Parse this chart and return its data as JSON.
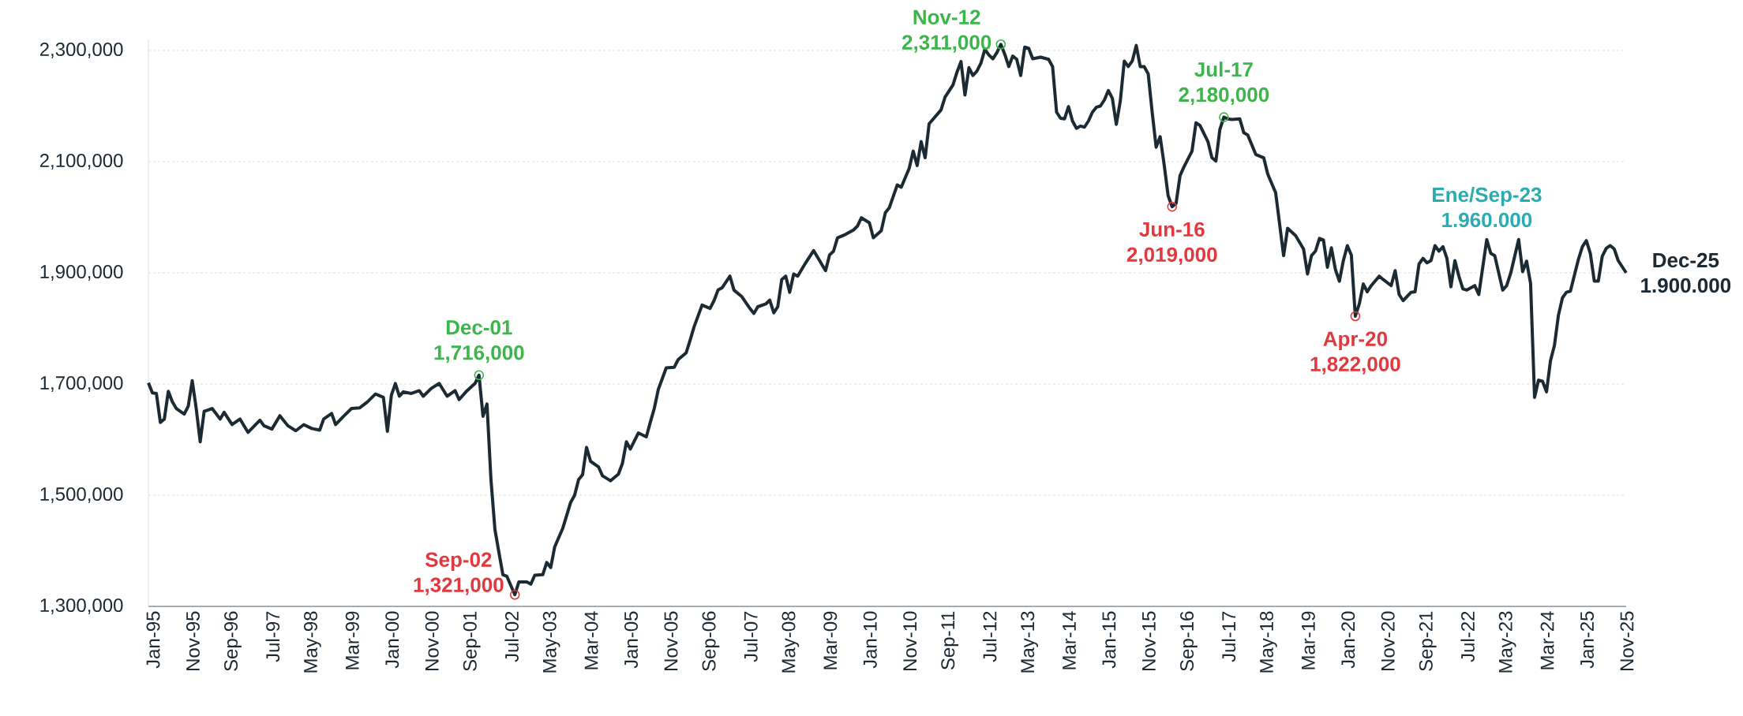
{
  "chart_data": {
    "type": "line",
    "xlim": [
      "1995-01",
      "2025-12"
    ],
    "ylim": [
      1300000,
      2320000
    ],
    "grid": "y",
    "xticks": [
      {
        "value": "1995-01",
        "label": "Jan-95"
      },
      {
        "value": "1995-11",
        "label": "Nov-95"
      },
      {
        "value": "1996-09",
        "label": "Sep-96"
      },
      {
        "value": "1997-07",
        "label": "Jul-97"
      },
      {
        "value": "1998-05",
        "label": "May-98"
      },
      {
        "value": "1999-03",
        "label": "Mar-99"
      },
      {
        "value": "2000-01",
        "label": "Jan-00"
      },
      {
        "value": "2000-11",
        "label": "Nov-00"
      },
      {
        "value": "2001-09",
        "label": "Sep-01"
      },
      {
        "value": "2002-07",
        "label": "Jul-02"
      },
      {
        "value": "2003-05",
        "label": "May-03"
      },
      {
        "value": "2004-03",
        "label": "Mar-04"
      },
      {
        "value": "2005-01",
        "label": "Jan-05"
      },
      {
        "value": "2005-11",
        "label": "Nov-05"
      },
      {
        "value": "2006-09",
        "label": "Sep-06"
      },
      {
        "value": "2007-07",
        "label": "Jul-07"
      },
      {
        "value": "2008-05",
        "label": "May-08"
      },
      {
        "value": "2009-03",
        "label": "Mar-09"
      },
      {
        "value": "2010-01",
        "label": "Jan-10"
      },
      {
        "value": "2010-11",
        "label": "Nov-10"
      },
      {
        "value": "2011-09",
        "label": "Sep-11"
      },
      {
        "value": "2012-07",
        "label": "Jul-12"
      },
      {
        "value": "2013-05",
        "label": "May-13"
      },
      {
        "value": "2014-03",
        "label": "Mar-14"
      },
      {
        "value": "2015-01",
        "label": "Jan-15"
      },
      {
        "value": "2015-11",
        "label": "Nov-15"
      },
      {
        "value": "2016-09",
        "label": "Sep-16"
      },
      {
        "value": "2017-07",
        "label": "Jul-17"
      },
      {
        "value": "2018-05",
        "label": "May-18"
      },
      {
        "value": "2019-03",
        "label": "Mar-19"
      },
      {
        "value": "2020-01",
        "label": "Jan-20"
      },
      {
        "value": "2020-11",
        "label": "Nov-20"
      },
      {
        "value": "2021-09",
        "label": "Sep-21"
      },
      {
        "value": "2022-07",
        "label": "Jul-22"
      },
      {
        "value": "2023-05",
        "label": "May-23"
      },
      {
        "value": "2024-03",
        "label": "Mar-24"
      },
      {
        "value": "2025-01",
        "label": "Jan-25"
      },
      {
        "value": "2025-11",
        "label": "Nov-25"
      }
    ],
    "yticks": [
      {
        "value": 1300000,
        "label": "1,300,000"
      },
      {
        "value": 1500000,
        "label": "1,500,000"
      },
      {
        "value": 1700000,
        "label": "1,700,000"
      },
      {
        "value": 1900000,
        "label": "1,900,000"
      },
      {
        "value": 2100000,
        "label": "2,100,000"
      },
      {
        "value": 2300000,
        "label": "2,300,000"
      }
    ],
    "series": [
      {
        "color": "#1c2b33",
        "line_style": "solid",
        "x": [
          "1995-01",
          "1995-02",
          "1995-03",
          "1995-04",
          "1995-05",
          "1995-06",
          "1995-07",
          "1995-08",
          "1995-10",
          "1995-11",
          "1995-12",
          "1996-01",
          "1996-02",
          "1996-03",
          "1996-05",
          "1996-07",
          "1996-08",
          "1996-10",
          "1996-12",
          "1997-02",
          "1997-05",
          "1997-06",
          "1997-08",
          "1997-10",
          "1997-12",
          "1998-02",
          "1998-04",
          "1998-06",
          "1998-08",
          "1998-09",
          "1998-11",
          "1998-12",
          "1999-02",
          "1999-04",
          "1999-06",
          "1999-08",
          "1999-10",
          "1999-12",
          "2000-01",
          "2000-02",
          "2000-03",
          "2000-04",
          "2000-05",
          "2000-07",
          "2000-09",
          "2000-10",
          "2000-12",
          "2001-02",
          "2001-04",
          "2001-06",
          "2001-07",
          "2001-09",
          "2001-11",
          "2001-12",
          "2002-01",
          "2002-02",
          "2002-03",
          "2002-04",
          "2002-05",
          "2002-06",
          "2002-07",
          "2002-09",
          "2002-10",
          "2002-12",
          "2003-01",
          "2003-02",
          "2003-04",
          "2003-05",
          "2003-06",
          "2003-07",
          "2003-09",
          "2003-11",
          "2003-12",
          "2004-01",
          "2004-02",
          "2004-03",
          "2004-04",
          "2004-06",
          "2004-07",
          "2004-09",
          "2004-11",
          "2004-12",
          "2005-01",
          "2005-02",
          "2005-04",
          "2005-06",
          "2005-07",
          "2005-08",
          "2005-09",
          "2005-11",
          "2006-01",
          "2006-02",
          "2006-04",
          "2006-05",
          "2006-06",
          "2006-08",
          "2006-10",
          "2006-11",
          "2006-12",
          "2007-01",
          "2007-03",
          "2007-04",
          "2007-06",
          "2007-08",
          "2007-09",
          "2007-10",
          "2007-12",
          "2008-01",
          "2008-02",
          "2008-03",
          "2008-04",
          "2008-05",
          "2008-06",
          "2008-07",
          "2008-08",
          "2008-10",
          "2008-11",
          "2008-12",
          "2009-01",
          "2009-03",
          "2009-04",
          "2009-05",
          "2009-06",
          "2009-08",
          "2009-10",
          "2009-11",
          "2009-12",
          "2010-02",
          "2010-03",
          "2010-05",
          "2010-06",
          "2010-07",
          "2010-09",
          "2010-10",
          "2010-12",
          "2011-01",
          "2011-02",
          "2011-03",
          "2011-04",
          "2011-05",
          "2011-08",
          "2011-09",
          "2011-11",
          "2011-12",
          "2012-01",
          "2012-02",
          "2012-03",
          "2012-04",
          "2012-05",
          "2012-06",
          "2012-07",
          "2012-08",
          "2012-09",
          "2012-10",
          "2012-11",
          "2012-12",
          "2013-01",
          "2013-02",
          "2013-03",
          "2013-04",
          "2013-05",
          "2013-06",
          "2013-07",
          "2013-09",
          "2013-11",
          "2013-12",
          "2014-01",
          "2014-02",
          "2014-03",
          "2014-04",
          "2014-05",
          "2014-06",
          "2014-07",
          "2014-08",
          "2014-09",
          "2014-10",
          "2014-11",
          "2014-12",
          "2015-01",
          "2015-02",
          "2015-03",
          "2015-04",
          "2015-05",
          "2015-06",
          "2015-07",
          "2015-08",
          "2015-09",
          "2015-10",
          "2015-11",
          "2015-12",
          "2016-01",
          "2016-02",
          "2016-03",
          "2016-04",
          "2016-05",
          "2016-06",
          "2016-07",
          "2016-08",
          "2016-09",
          "2016-11",
          "2016-12",
          "2017-01",
          "2017-03",
          "2017-04",
          "2017-05",
          "2017-06",
          "2017-07",
          "2017-08",
          "2017-09",
          "2017-11",
          "2017-12",
          "2018-01",
          "2018-03",
          "2018-05",
          "2018-06",
          "2018-08",
          "2018-10",
          "2018-11",
          "2019-01",
          "2019-03",
          "2019-04",
          "2019-05",
          "2019-06",
          "2019-07",
          "2019-08",
          "2019-09",
          "2019-10",
          "2019-11",
          "2019-12",
          "2020-01",
          "2020-02",
          "2020-03",
          "2020-04",
          "2020-05",
          "2020-06",
          "2020-07",
          "2020-08",
          "2020-10",
          "2020-11",
          "2021-01",
          "2021-02",
          "2021-03",
          "2021-04",
          "2021-06",
          "2021-07",
          "2021-08",
          "2021-09",
          "2021-10",
          "2021-11",
          "2021-12",
          "2022-01",
          "2022-02",
          "2022-03",
          "2022-04",
          "2022-05",
          "2022-06",
          "2022-07",
          "2022-08",
          "2022-10",
          "2022-11",
          "2023-01",
          "2023-02",
          "2023-03",
          "2023-05",
          "2023-06",
          "2023-07",
          "2023-09",
          "2023-10",
          "2023-11",
          "2023-12",
          "2024-01",
          "2024-02",
          "2024-03",
          "2024-04",
          "2024-05",
          "2024-06",
          "2024-07",
          "2024-08",
          "2024-09",
          "2024-10",
          "2024-12",
          "2025-01",
          "2025-02",
          "2025-03",
          "2025-04",
          "2025-05",
          "2025-06",
          "2025-07",
          "2025-08",
          "2025-09",
          "2025-10",
          "2025-12"
        ],
        "values": [
          1702000,
          1684000,
          1683000,
          1631000,
          1637000,
          1687000,
          1668000,
          1656000,
          1646000,
          1660000,
          1706000,
          1656000,
          1596000,
          1651000,
          1656000,
          1637000,
          1649000,
          1627000,
          1637000,
          1613000,
          1635000,
          1625000,
          1619000,
          1643000,
          1625000,
          1616000,
          1627000,
          1620000,
          1617000,
          1637000,
          1647000,
          1627000,
          1642000,
          1656000,
          1657000,
          1668000,
          1682000,
          1676000,
          1615000,
          1680000,
          1701000,
          1678000,
          1686000,
          1683000,
          1688000,
          1678000,
          1692000,
          1701000,
          1678000,
          1688000,
          1672000,
          1688000,
          1701000,
          1716000,
          1642000,
          1664000,
          1528000,
          1438000,
          1397000,
          1357000,
          1354000,
          1321000,
          1344000,
          1344000,
          1340000,
          1356000,
          1357000,
          1379000,
          1370000,
          1407000,
          1440000,
          1487000,
          1500000,
          1528000,
          1537000,
          1586000,
          1561000,
          1551000,
          1535000,
          1526000,
          1538000,
          1557000,
          1596000,
          1583000,
          1612000,
          1605000,
          1631000,
          1656000,
          1690000,
          1729000,
          1730000,
          1744000,
          1756000,
          1779000,
          1803000,
          1842000,
          1836000,
          1850000,
          1869000,
          1873000,
          1894000,
          1869000,
          1857000,
          1836000,
          1827000,
          1839000,
          1844000,
          1851000,
          1828000,
          1839000,
          1888000,
          1894000,
          1865000,
          1898000,
          1894000,
          1918000,
          1929000,
          1940000,
          1928000,
          1904000,
          1932000,
          1939000,
          1963000,
          1969000,
          1977000,
          1984000,
          1999000,
          1990000,
          1963000,
          1976000,
          2008000,
          2017000,
          2058000,
          2054000,
          2088000,
          2119000,
          2093000,
          2136000,
          2107000,
          2168000,
          2193000,
          2216000,
          2238000,
          2261000,
          2280000,
          2220000,
          2269000,
          2255000,
          2263000,
          2277000,
          2302000,
          2292000,
          2285000,
          2296000,
          2311000,
          2293000,
          2271000,
          2290000,
          2284000,
          2255000,
          2306000,
          2304000,
          2285000,
          2288000,
          2284000,
          2271000,
          2189000,
          2178000,
          2177000,
          2199000,
          2173000,
          2160000,
          2164000,
          2162000,
          2173000,
          2189000,
          2198000,
          2200000,
          2211000,
          2228000,
          2214000,
          2167000,
          2209000,
          2281000,
          2271000,
          2281000,
          2309000,
          2271000,
          2271000,
          2258000,
          2189000,
          2126000,
          2145000,
          2095000,
          2039000,
          2019000,
          2025000,
          2075000,
          2091000,
          2119000,
          2170000,
          2165000,
          2136000,
          2107000,
          2101000,
          2158000,
          2180000,
          2177000,
          2176000,
          2177000,
          2152000,
          2148000,
          2113000,
          2107000,
          2078000,
          2044000,
          1931000,
          1980000,
          1967000,
          1943000,
          1898000,
          1931000,
          1939000,
          1962000,
          1959000,
          1910000,
          1945000,
          1906000,
          1885000,
          1922000,
          1949000,
          1932000,
          1822000,
          1844000,
          1880000,
          1866000,
          1877000,
          1894000,
          1888000,
          1877000,
          1904000,
          1861000,
          1850000,
          1865000,
          1866000,
          1916000,
          1926000,
          1918000,
          1922000,
          1949000,
          1939000,
          1947000,
          1926000,
          1875000,
          1922000,
          1894000,
          1871000,
          1869000,
          1877000,
          1861000,
          1960000,
          1935000,
          1931000,
          1869000,
          1877000,
          1899000,
          1960000,
          1902000,
          1921000,
          1881000,
          1676000,
          1707000,
          1705000,
          1686000,
          1742000,
          1770000,
          1824000,
          1855000,
          1865000,
          1867000,
          1924000,
          1947000,
          1958000,
          1935000,
          1885000,
          1885000,
          1930000,
          1944000,
          1949000,
          1943000,
          1922000,
          1900000
        ]
      },
      {
        "type": "scatter",
        "color": "#3cb54a",
        "marker": "circle",
        "x": [
          "2001-12",
          "2012-11",
          "2017-07"
        ],
        "values": [
          1716000,
          2311000,
          2180000
        ]
      },
      {
        "type": "scatter",
        "color": "#e0393e",
        "marker": "circle",
        "x": [
          "2002-09",
          "2016-06",
          "2020-04"
        ],
        "values": [
          1321000,
          2019000,
          1822000
        ]
      }
    ],
    "annotations": [
      {
        "text": "Dec-01",
        "x": "2001-12",
        "y": 1716000
      },
      {
        "text": "1,716,000",
        "x": "2001-12",
        "y": 1716000
      },
      {
        "text": "Sep-02",
        "x": "2002-09",
        "y": 1321000
      },
      {
        "text": "1,321,000",
        "x": "2002-09",
        "y": 1321000
      },
      {
        "text": "Nov-12",
        "x": "2012-11",
        "y": 2311000
      },
      {
        "text": "2,311,000",
        "x": "2012-11",
        "y": 2311000
      },
      {
        "text": "Jun-16",
        "x": "2016-06",
        "y": 2019000
      },
      {
        "text": "2,019,000",
        "x": "2016-06",
        "y": 2019000
      },
      {
        "text": "Jul-17",
        "x": "2017-07",
        "y": 2180000
      },
      {
        "text": "2,180,000",
        "x": "2017-07",
        "y": 2180000
      },
      {
        "text": "Apr-20",
        "x": "2020-04",
        "y": 1822000
      },
      {
        "text": "1,822,000",
        "x": "2020-04",
        "y": 1822000
      },
      {
        "text": "Ene/Sep-23",
        "x": "2023-01",
        "y": 1960000
      },
      {
        "text": "1.960.000",
        "x": "2023-01",
        "y": 1960000
      },
      {
        "text": "Dec-25",
        "x": "2025-12",
        "y": 1900000
      },
      {
        "text": "1.900.000",
        "x": "2025-12",
        "y": 1900000
      }
    ]
  }
}
